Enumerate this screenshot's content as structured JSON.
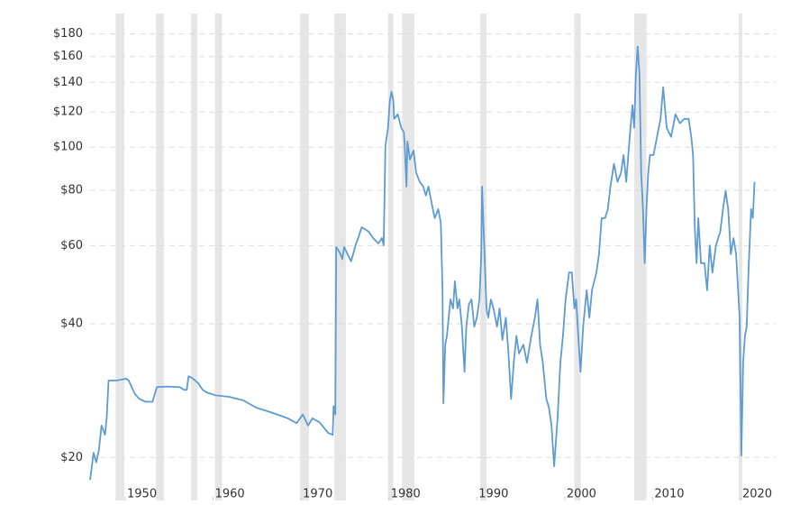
{
  "chart_data": {
    "type": "line",
    "log_y": true,
    "grid": true,
    "line_color": "#5d9bd2",
    "recession_color": "#e6e6e6",
    "grid_color": "#dddddd",
    "xlim": [
      1946,
      2024
    ],
    "xticks": [
      1950,
      1960,
      1970,
      1980,
      1990,
      2000,
      2010,
      2020
    ],
    "ylim": [
      16,
      200
    ],
    "yticks": [
      {
        "value": 20,
        "label": "$20"
      },
      {
        "value": 40,
        "label": "$40"
      },
      {
        "value": 60,
        "label": "$60"
      },
      {
        "value": 80,
        "label": "$80"
      },
      {
        "value": 100,
        "label": "$100"
      },
      {
        "value": 120,
        "label": "$120"
      },
      {
        "value": 140,
        "label": "$140"
      },
      {
        "value": 160,
        "label": "$160"
      },
      {
        "value": 180,
        "label": "$180"
      }
    ],
    "recessions": [
      [
        1948.9,
        1949.9
      ],
      [
        1953.5,
        1954.4
      ],
      [
        1957.5,
        1958.2
      ],
      [
        1960.2,
        1961.0
      ],
      [
        1969.9,
        1970.9
      ],
      [
        1973.8,
        1975.1
      ],
      [
        1979.9,
        1980.5
      ],
      [
        1981.5,
        1982.9
      ],
      [
        1990.4,
        1991.1
      ],
      [
        2001.1,
        2001.8
      ],
      [
        2007.9,
        2009.3
      ],
      [
        2019.8,
        2020.2
      ]
    ],
    "x": [
      1946.0,
      1946.4,
      1946.7,
      1947.0,
      1947.3,
      1947.7,
      1947.9,
      1948.1,
      1948.5,
      1949.0,
      1950.1,
      1950.4,
      1951.1,
      1951.6,
      1952.3,
      1953.1,
      1953.6,
      1954.7,
      1956.2,
      1956.7,
      1957.0,
      1957.2,
      1957.7,
      1958.3,
      1958.8,
      1959.3,
      1960.3,
      1961.8,
      1963.4,
      1964.9,
      1966.5,
      1967.5,
      1968.5,
      1969.5,
      1970.2,
      1970.8,
      1971.3,
      1972.1,
      1973.1,
      1973.6,
      1973.7,
      1973.9,
      1974.0,
      1974.4,
      1974.7,
      1974.9,
      1975.2,
      1975.7,
      1976.2,
      1976.5,
      1976.9,
      1977.7,
      1978.2,
      1978.8,
      1979.2,
      1979.4,
      1979.6,
      1979.9,
      1980.1,
      1980.3,
      1980.5,
      1980.6,
      1981.0,
      1981.4,
      1981.7,
      1981.8,
      1982.0,
      1982.1,
      1982.4,
      1982.8,
      1983.1,
      1983.5,
      1983.9,
      1984.2,
      1984.5,
      1984.9,
      1985.2,
      1985.6,
      1985.9,
      1986.1,
      1986.2,
      1986.4,
      1986.6,
      1987.0,
      1987.3,
      1987.5,
      1987.8,
      1988.0,
      1988.3,
      1988.6,
      1988.8,
      1989.1,
      1989.4,
      1989.7,
      1990.0,
      1990.3,
      1990.5,
      1990.6,
      1990.8,
      1991.1,
      1991.3,
      1991.6,
      1991.9,
      1992.3,
      1992.6,
      1992.9,
      1993.3,
      1993.6,
      1993.9,
      1994.2,
      1994.5,
      1994.8,
      1995.3,
      1995.7,
      1996.2,
      1996.6,
      1996.9,
      1997.2,
      1997.5,
      1997.9,
      1998.2,
      1998.5,
      1998.8,
      1999.2,
      1999.5,
      1999.8,
      2000.1,
      2000.5,
      2000.8,
      2001.1,
      2001.3,
      2001.6,
      2001.8,
      2002.1,
      2002.5,
      2002.8,
      2003.1,
      2003.6,
      2003.9,
      2004.2,
      2004.6,
      2004.9,
      2005.2,
      2005.6,
      2006.0,
      2006.4,
      2006.7,
      2007.0,
      2007.4,
      2007.7,
      2007.9,
      2008.1,
      2008.3,
      2008.5,
      2008.7,
      2008.9,
      2009.1,
      2009.3,
      2009.5,
      2009.7,
      2010.1,
      2010.5,
      2010.9,
      2011.2,
      2011.6,
      2012.1,
      2012.6,
      2013.1,
      2013.6,
      2014.1,
      2014.4,
      2014.6,
      2014.8,
      2015.0,
      2015.2,
      2015.5,
      2015.9,
      2016.2,
      2016.5,
      2016.8,
      2017.2,
      2017.7,
      2018.0,
      2018.3,
      2018.6,
      2018.9,
      2019.2,
      2019.5,
      2019.9,
      2020.1,
      2020.3,
      2020.5,
      2020.7,
      2020.9,
      2021.2,
      2021.4,
      2021.6
    ],
    "values": [
      17.8,
      20.5,
      19.5,
      20.8,
      23.6,
      22.5,
      24.7,
      29.8,
      29.8,
      29.8,
      30.1,
      29.8,
      27.8,
      27.1,
      26.7,
      26.7,
      28.8,
      28.9,
      28.8,
      28.4,
      28.4,
      30.5,
      30.1,
      29.4,
      28.4,
      28.0,
      27.6,
      27.4,
      26.9,
      25.9,
      25.3,
      24.9,
      24.5,
      23.9,
      25.0,
      23.6,
      24.5,
      24.0,
      22.7,
      22.5,
      26.1,
      25.0,
      59.6,
      57.9,
      56.0,
      59.6,
      57.9,
      55.3,
      60.1,
      62.4,
      66.0,
      64.5,
      62.4,
      60.7,
      62.4,
      60.1,
      100.6,
      110.6,
      127.2,
      133.3,
      127.2,
      115.8,
      118.6,
      110.6,
      108.0,
      100.6,
      81.5,
      103.0,
      93.8,
      98.3,
      87.5,
      83.5,
      81.5,
      77.8,
      81.5,
      74.2,
      69.2,
      72.5,
      67.6,
      47.6,
      26.5,
      35.9,
      37.6,
      45.4,
      43.3,
      49.9,
      43.3,
      45.4,
      39.4,
      31.2,
      39.4,
      44.3,
      45.4,
      39.4,
      41.3,
      45.4,
      57.4,
      81.5,
      63.0,
      43.3,
      41.3,
      45.4,
      43.3,
      39.4,
      43.3,
      36.8,
      41.3,
      34.3,
      27.1,
      32.7,
      37.6,
      34.3,
      35.9,
      32.7,
      37.6,
      41.3,
      45.4,
      35.9,
      32.7,
      27.1,
      25.9,
      23.6,
      19.1,
      24.7,
      32.7,
      37.6,
      45.4,
      52.2,
      52.2,
      43.3,
      45.4,
      35.9,
      31.2,
      39.4,
      47.6,
      41.3,
      47.6,
      52.2,
      57.4,
      69.2,
      69.2,
      72.5,
      81.5,
      91.7,
      83.5,
      87.5,
      96.0,
      83.5,
      105.5,
      124.3,
      110.6,
      146.4,
      168.5,
      146.4,
      87.5,
      72.5,
      54.8,
      72.5,
      87.5,
      96.0,
      96.0,
      105.5,
      115.8,
      136.4,
      110.6,
      105.5,
      118.6,
      113.2,
      115.8,
      115.8,
      105.5,
      96.0,
      66.0,
      54.8,
      69.2,
      54.8,
      54.8,
      47.6,
      60.1,
      52.2,
      60.1,
      64.5,
      72.5,
      79.7,
      72.5,
      57.4,
      62.4,
      57.4,
      41.3,
      20.2,
      32.7,
      37.6,
      39.4,
      52.2,
      72.5,
      69.2,
      83.5
    ]
  }
}
